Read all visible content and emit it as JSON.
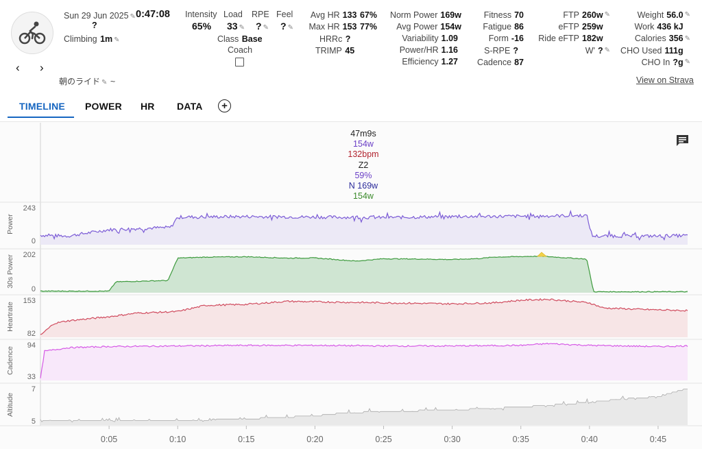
{
  "activity": {
    "date": "Sun 29 Jun 2025",
    "duration": "0:47:08",
    "unknown": "?",
    "climbing_label": "Climbing",
    "climbing_value": "1m",
    "name": "朝のライド",
    "name_suffix": "~"
  },
  "load_block": {
    "intensity_label": "Intensity",
    "intensity_value": "65%",
    "load_label": "Load",
    "load_value": "33",
    "rpe_label": "RPE",
    "rpe_value": "?",
    "feel_label": "Feel",
    "feel_value": "?",
    "class_label": "Class",
    "class_value": "Base",
    "coach_label": "Coach"
  },
  "hr_block": {
    "avg_hr_label": "Avg HR",
    "avg_hr_value": "133",
    "avg_hr_pct": "67%",
    "max_hr_label": "Max HR",
    "max_hr_value": "153",
    "max_hr_pct": "77%",
    "hrrc_label": "HRRc",
    "hrrc_value": "?",
    "trimp_label": "TRIMP",
    "trimp_value": "45"
  },
  "power_block": {
    "norm_power_label": "Norm Power",
    "norm_power_value": "169w",
    "avg_power_label": "Avg Power",
    "avg_power_value": "154w",
    "variability_label": "Variability",
    "variability_value": "1.09",
    "power_hr_label": "Power/HR",
    "power_hr_value": "1.16",
    "efficiency_label": "Efficiency",
    "efficiency_value": "1.27"
  },
  "fitness_block": {
    "fitness_label": "Fitness",
    "fitness_value": "70",
    "fatigue_label": "Fatigue",
    "fatigue_value": "86",
    "form_label": "Form",
    "form_value": "-16",
    "srpe_label": "S-RPE",
    "srpe_value": "?",
    "cadence_label": "Cadence",
    "cadence_value": "87"
  },
  "ftp_block": {
    "ftp_label": "FTP",
    "ftp_value": "260w",
    "eftp_label": "eFTP",
    "eftp_value": "259w",
    "ride_eftp_label": "Ride eFTP",
    "ride_eftp_value": "182w",
    "wprime_label": "W'",
    "wprime_value": "?"
  },
  "energy_block": {
    "weight_label": "Weight",
    "weight_value": "56.0",
    "work_label": "Work",
    "work_value": "436 kJ",
    "calories_label": "Calories",
    "calories_value": "356",
    "cho_used_label": "CHO Used",
    "cho_used_value": "111g",
    "cho_in_label": "CHO In",
    "cho_in_value": "?g"
  },
  "strava_link": "View on Strava",
  "tabs": [
    {
      "label": "TIMELINE"
    },
    {
      "label": "POWER"
    },
    {
      "label": "HR"
    },
    {
      "label": "DATA"
    }
  ],
  "hover_info": {
    "time": "47m9s",
    "power": "154w",
    "hr": "132bpm",
    "zone": "Z2",
    "pct": "59%",
    "norm": "N 169w",
    "avg": "154w"
  },
  "colors": {
    "accent": "#1565c0",
    "power": "#7b5bd6",
    "power30": "#3d9a3d",
    "heartrate": "#d04b5e",
    "cadence": "#d65ae6",
    "altitude": "#aaaaaa",
    "hover_time": "#222222",
    "hover_power": "#6a3fc6",
    "hover_hr": "#b2242f",
    "hover_norm": "#2c2c9c",
    "hover_avg": "#3b8a2b"
  },
  "chart_data": [
    {
      "type": "line",
      "name": "Power",
      "ylabel": "Power",
      "ytick_labels": [
        "243",
        "0"
      ],
      "x_minutes": [
        0,
        2,
        5,
        9.5,
        10,
        15,
        20,
        25,
        30,
        35,
        39.8,
        40.2,
        45,
        47
      ],
      "values": [
        60,
        55,
        95,
        110,
        175,
        178,
        175,
        172,
        178,
        180,
        185,
        55,
        55,
        58
      ]
    },
    {
      "type": "area",
      "name": "30s Power",
      "ylabel": "30s Power",
      "ytick_labels": [
        "202",
        "0"
      ],
      "x_minutes": [
        0,
        5,
        5.5,
        9.3,
        10,
        12,
        15,
        18,
        20,
        23,
        25,
        28,
        30,
        32,
        33,
        36.5,
        38,
        39.8,
        40.3,
        47
      ],
      "values": [
        8,
        8,
        55,
        62,
        175,
        180,
        182,
        175,
        176,
        160,
        172,
        170,
        168,
        173,
        180,
        185,
        178,
        170,
        5,
        5
      ]
    },
    {
      "type": "line",
      "name": "Heartrate",
      "ylabel": "Heartrate",
      "ytick_labels": [
        "153",
        "82"
      ],
      "x_minutes": [
        0,
        1,
        2,
        5,
        7,
        10,
        12,
        15,
        18,
        20,
        25,
        30,
        33,
        35,
        37,
        40,
        41,
        44,
        47
      ],
      "values": [
        82,
        105,
        110,
        118,
        125,
        128,
        140,
        142,
        148,
        147,
        145,
        143,
        145,
        150,
        152,
        145,
        135,
        132,
        130
      ]
    },
    {
      "type": "line",
      "name": "Cadence",
      "ylabel": "Cadence",
      "ytick_labels": [
        "94",
        "33"
      ],
      "x_minutes": [
        0,
        0.3,
        2,
        5,
        10,
        15,
        20,
        25,
        30,
        35,
        37,
        40,
        45,
        47
      ],
      "values": [
        33,
        80,
        86,
        88,
        89,
        90,
        90,
        89,
        89,
        90,
        93,
        90,
        88,
        89
      ]
    },
    {
      "type": "area",
      "name": "Altitude",
      "ylabel": "Altitude",
      "ytick_labels": [
        "7",
        "5"
      ],
      "x_minutes": [
        0,
        5,
        10,
        15,
        17,
        20,
        22,
        25,
        30,
        35,
        40,
        42,
        45,
        47
      ],
      "values": [
        4.9,
        4.9,
        4.9,
        5.0,
        5.1,
        5.2,
        5.4,
        5.5,
        5.6,
        5.8,
        6.1,
        6.3,
        6.5,
        7.0
      ]
    }
  ],
  "x_axis": {
    "ticks": [
      "0:05",
      "0:10",
      "0:15",
      "0:20",
      "0:25",
      "0:30",
      "0:35",
      "0:40",
      "0:45"
    ],
    "tick_minutes": [
      5,
      10,
      15,
      20,
      25,
      30,
      35,
      40,
      45
    ],
    "max_minutes": 47.15
  }
}
